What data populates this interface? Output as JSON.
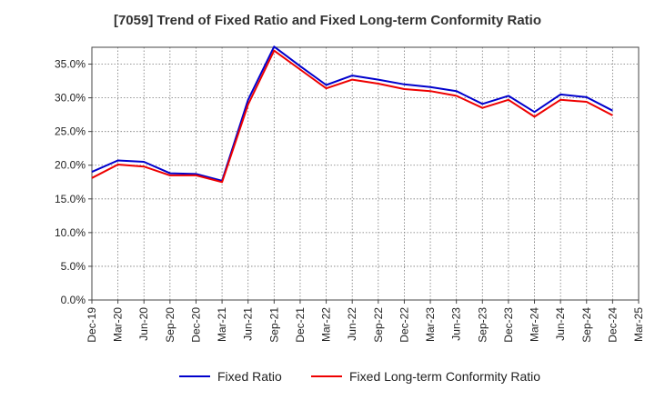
{
  "chart_data": {
    "type": "line",
    "title": "[7059]  Trend of Fixed Ratio and Fixed Long-term Conformity Ratio",
    "xlabel": "",
    "ylabel": "",
    "ylim": [
      0,
      37.5
    ],
    "y_ticks": [
      "0.0%",
      "5.0%",
      "10.0%",
      "15.0%",
      "20.0%",
      "25.0%",
      "30.0%",
      "35.0%"
    ],
    "y_tick_values": [
      0,
      5,
      10,
      15,
      20,
      25,
      30,
      35
    ],
    "categories": [
      "Dec-19",
      "Mar-20",
      "Jun-20",
      "Sep-20",
      "Dec-20",
      "Mar-21",
      "Jun-21",
      "Sep-21",
      "Dec-21",
      "Mar-22",
      "Jun-22",
      "Sep-22",
      "Dec-22",
      "Mar-23",
      "Jun-23",
      "Sep-23",
      "Dec-23",
      "Mar-24",
      "Jun-24",
      "Sep-24",
      "Dec-24",
      "Mar-25"
    ],
    "grid": true,
    "legend_position": "bottom",
    "series": [
      {
        "name": "Fixed Ratio",
        "color": "#0000cc",
        "values": [
          19.0,
          20.7,
          20.5,
          18.8,
          18.7,
          17.7,
          29.7,
          37.6,
          34.7,
          31.9,
          33.3,
          32.7,
          32.0,
          31.6,
          31.0,
          29.1,
          30.3,
          27.9,
          30.5,
          30.1,
          28.1,
          null
        ]
      },
      {
        "name": "Fixed Long-term Conformity Ratio",
        "color": "#ee0000",
        "values": [
          18.1,
          20.1,
          19.8,
          18.5,
          18.5,
          17.5,
          29.0,
          37.0,
          34.2,
          31.4,
          32.7,
          32.1,
          31.3,
          31.0,
          30.3,
          28.5,
          29.7,
          27.2,
          29.7,
          29.4,
          27.4,
          null
        ]
      }
    ]
  }
}
